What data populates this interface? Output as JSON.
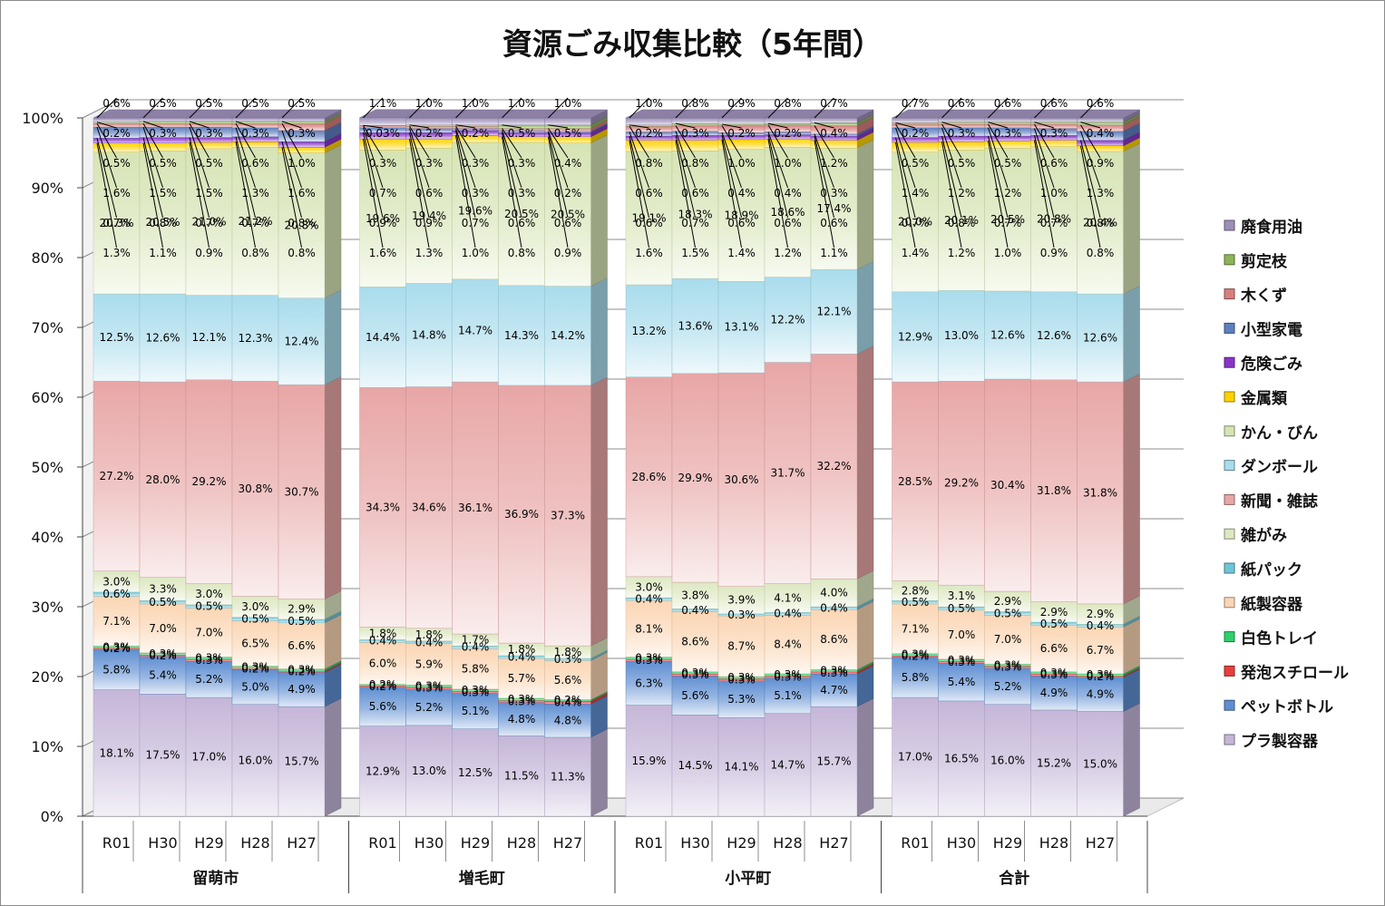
{
  "chart_data": {
    "type": "stacked-bar-3d",
    "title": "資源ごみ収集比較（5年間）",
    "y_ticks": [
      "0%",
      "10%",
      "20%",
      "30%",
      "40%",
      "50%",
      "60%",
      "70%",
      "80%",
      "90%",
      "100%"
    ],
    "ylim": [
      0,
      100
    ],
    "grid": true,
    "legend_position": "right",
    "categories": [
      {
        "group": "留萌市",
        "years": [
          "R01",
          "H30",
          "H29",
          "H28",
          "H27"
        ]
      },
      {
        "group": "増毛町",
        "years": [
          "R01",
          "H30",
          "H29",
          "H28",
          "H27"
        ]
      },
      {
        "group": "小平町",
        "years": [
          "R01",
          "H30",
          "H29",
          "H28",
          "H27"
        ]
      },
      {
        "group": "合計",
        "years": [
          "R01",
          "H30",
          "H29",
          "H28",
          "H27"
        ]
      }
    ],
    "series": [
      {
        "name": "プラ製容器",
        "color": "#c5b6d8",
        "values": [
          [
            18.1,
            17.5,
            17.0,
            16.0,
            15.7
          ],
          [
            12.9,
            13.0,
            12.5,
            11.5,
            11.3
          ],
          [
            15.9,
            14.5,
            14.1,
            14.7,
            15.7
          ],
          [
            17.0,
            16.5,
            16.0,
            15.2,
            15.0
          ]
        ],
        "labels": [
          [
            "18.1%",
            "17.5%",
            "17.0%",
            "16.0%",
            "15.7%"
          ],
          [
            "12.9%",
            "13.0%",
            "12.5%",
            "11.5%",
            "11.3%"
          ],
          [
            "15.9%",
            "14.5%",
            "14.1%",
            "14.7%",
            "15.7%"
          ],
          [
            "17.0%",
            "16.5%",
            "16.0%",
            "15.2%",
            "15.0%"
          ]
        ]
      },
      {
        "name": "ペットボトル",
        "color": "#5f8fd2",
        "values": [
          [
            5.8,
            5.4,
            5.2,
            5.0,
            4.9
          ],
          [
            5.6,
            5.2,
            5.1,
            4.8,
            4.8
          ],
          [
            6.3,
            5.6,
            5.3,
            5.1,
            4.7
          ],
          [
            5.8,
            5.4,
            5.2,
            4.9,
            4.9
          ]
        ],
        "labels": [
          [
            "5.8%",
            "5.4%",
            "5.2%",
            "5.0%",
            "4.9%"
          ],
          [
            "5.6%",
            "5.2%",
            "5.1%",
            "4.8%",
            "4.8%"
          ],
          [
            "6.3%",
            "5.6%",
            "5.3%",
            "5.1%",
            "4.7%"
          ],
          [
            "5.8%",
            "5.4%",
            "5.2%",
            "4.9%",
            "4.9%"
          ]
        ]
      },
      {
        "name": "発泡スチロール",
        "color": "#e63f3f",
        "values": [
          [
            0.2,
            0.2,
            0.3,
            0.2,
            0.2
          ],
          [
            0.2,
            0.3,
            0.3,
            0.3,
            0.4
          ],
          [
            0.3,
            0.3,
            0.3,
            0.3,
            0.3
          ],
          [
            0.2,
            0.3,
            0.3,
            0.3,
            0.2
          ]
        ],
        "labels": [
          [
            "0.2%",
            "0.2%",
            "0.3%",
            "0.2%",
            "0.2%"
          ],
          [
            "0.2%",
            "0.3%",
            "0.3%",
            "0.3%",
            "0.4%"
          ],
          [
            "0.3%",
            "0.3%",
            "0.3%",
            "0.3%",
            "0.3%"
          ],
          [
            "0.2%",
            "0.3%",
            "0.3%",
            "0.3%",
            "0.2%"
          ]
        ]
      },
      {
        "name": "白色トレイ",
        "color": "#2fcf6c",
        "values": [
          [
            0.3,
            0.3,
            0.3,
            0.3,
            0.3
          ],
          [
            0.2,
            0.3,
            0.3,
            0.3,
            0.2
          ],
          [
            0.3,
            0.3,
            0.3,
            0.3,
            0.3
          ],
          [
            0.3,
            0.3,
            0.3,
            0.3,
            0.3
          ]
        ],
        "labels": [
          [
            "0.3%",
            "0.3%",
            "0.3%",
            "0.3%",
            "0.3%"
          ],
          [
            "0.2%",
            "0.3%",
            "0.3%",
            "0.3%",
            "0.2%"
          ],
          [
            "0.3%",
            "0.3%",
            "0.3%",
            "0.3%",
            "0.3%"
          ],
          [
            "0.3%",
            "0.3%",
            "0.3%",
            "0.3%",
            "0.3%"
          ]
        ]
      },
      {
        "name": "紙製容器",
        "color": "#fbd6b4",
        "values": [
          [
            7.1,
            7.0,
            7.0,
            6.5,
            6.6
          ],
          [
            6.0,
            5.9,
            5.8,
            5.7,
            5.6
          ],
          [
            8.1,
            8.6,
            8.7,
            8.4,
            8.6
          ],
          [
            7.1,
            7.0,
            7.0,
            6.6,
            6.7
          ]
        ],
        "labels": [
          [
            "7.1%",
            "7.0%",
            "7.0%",
            "6.5%",
            "6.6%"
          ],
          [
            "6.0%",
            "5.9%",
            "5.8%",
            "5.7%",
            "5.6%"
          ],
          [
            "8.1%",
            "8.6%",
            "8.7%",
            "8.4%",
            "8.6%"
          ],
          [
            "7.1%",
            "7.0%",
            "7.0%",
            "6.6%",
            "6.7%"
          ]
        ]
      },
      {
        "name": "紙パック",
        "color": "#6fc6d9",
        "values": [
          [
            0.6,
            0.5,
            0.5,
            0.5,
            0.5
          ],
          [
            0.4,
            0.4,
            0.4,
            0.4,
            0.3
          ],
          [
            0.4,
            0.4,
            0.3,
            0.4,
            0.4
          ],
          [
            0.5,
            0.5,
            0.5,
            0.5,
            0.4
          ]
        ],
        "labels": [
          [
            "0.6%",
            "0.5%",
            "0.5%",
            "0.5%",
            "0.5%"
          ],
          [
            "0.4%",
            "0.4%",
            "0.4%",
            "0.4%",
            "0.3%"
          ],
          [
            "0.4%",
            "0.4%",
            "0.3%",
            "0.4%",
            "0.4%"
          ],
          [
            "0.5%",
            "0.5%",
            "0.5%",
            "0.5%",
            "0.4%"
          ]
        ]
      },
      {
        "name": "雑がみ",
        "color": "#dde8c2",
        "values": [
          [
            3.0,
            3.3,
            3.0,
            3.0,
            2.9
          ],
          [
            1.8,
            1.8,
            1.7,
            1.8,
            1.8
          ],
          [
            3.0,
            3.8,
            3.9,
            4.1,
            4.0
          ],
          [
            2.8,
            3.1,
            2.9,
            2.9,
            2.9
          ]
        ],
        "labels": [
          [
            "3.0%",
            "3.3%",
            "3.0%",
            "3.0%",
            "2.9%"
          ],
          [
            "1.8%",
            "1.8%",
            "1.7%",
            "1.8%",
            "1.8%"
          ],
          [
            "3.0%",
            "3.8%",
            "3.9%",
            "4.1%",
            "4.0%"
          ],
          [
            "2.8%",
            "3.1%",
            "2.9%",
            "2.9%",
            "2.9%"
          ]
        ]
      },
      {
        "name": "新聞・雑誌",
        "color": "#e8a6a6",
        "values": [
          [
            27.2,
            28.0,
            29.2,
            30.8,
            30.7
          ],
          [
            34.3,
            34.6,
            36.1,
            36.9,
            37.3
          ],
          [
            28.6,
            29.9,
            30.6,
            31.7,
            32.2
          ],
          [
            28.5,
            29.2,
            30.4,
            31.8,
            31.8
          ]
        ],
        "labels": [
          [
            "27.2%",
            "28.0%",
            "29.2%",
            "30.8%",
            "30.7%"
          ],
          [
            "34.3%",
            "34.6%",
            "36.1%",
            "36.9%",
            "37.3%"
          ],
          [
            "28.6%",
            "29.9%",
            "30.6%",
            "31.7%",
            "32.2%"
          ],
          [
            "28.5%",
            "29.2%",
            "30.4%",
            "31.8%",
            "31.8%"
          ]
        ]
      },
      {
        "name": "ダンボール",
        "color": "#a9dcec",
        "values": [
          [
            12.5,
            12.6,
            12.1,
            12.3,
            12.4
          ],
          [
            14.4,
            14.8,
            14.7,
            14.3,
            14.2
          ],
          [
            13.2,
            13.6,
            13.1,
            12.2,
            12.1
          ],
          [
            12.9,
            13.0,
            12.6,
            12.6,
            12.6
          ]
        ],
        "labels": [
          [
            "12.5%",
            "12.6%",
            "12.1%",
            "12.3%",
            "12.4%"
          ],
          [
            "14.4%",
            "14.8%",
            "14.7%",
            "14.3%",
            "14.2%"
          ],
          [
            "13.2%",
            "13.6%",
            "13.1%",
            "12.2%",
            "12.1%"
          ],
          [
            "12.9%",
            "13.0%",
            "12.6%",
            "12.6%",
            "12.6%"
          ]
        ]
      },
      {
        "name": "かん・びん",
        "color": "#d6e4b4",
        "values": [
          [
            20.3,
            20.5,
            21.0,
            21.2,
            20.8
          ],
          [
            19.6,
            19.4,
            19.6,
            20.5,
            20.5
          ],
          [
            19.1,
            18.3,
            18.9,
            18.6,
            17.4
          ],
          [
            20.0,
            20.1,
            20.5,
            20.8,
            20.4
          ]
        ],
        "labels": [
          [
            "20.3%",
            "20.5%",
            "21.0%",
            "21.2%",
            "20.8%"
          ],
          [
            "19.6%",
            "19.4%",
            "19.6%",
            "20.5%",
            "20.5%"
          ],
          [
            "19.1%",
            "18.3%",
            "18.9%",
            "18.6%",
            "17.4%"
          ],
          [
            "20.0%",
            "20.1%",
            "20.5%",
            "20.8%",
            "20.4%"
          ]
        ]
      },
      {
        "name": "金属類",
        "color": "#ffd200",
        "values": [
          [
            1.3,
            1.1,
            0.9,
            0.8,
            0.8
          ],
          [
            1.6,
            1.3,
            1.0,
            0.8,
            0.9
          ],
          [
            1.6,
            1.5,
            1.4,
            1.2,
            1.1
          ],
          [
            1.4,
            1.2,
            1.0,
            0.9,
            0.8
          ]
        ],
        "labels": [
          [
            "1.3%",
            "1.1%",
            "0.9%",
            "0.8%",
            "0.8%"
          ],
          [
            "1.6%",
            "1.3%",
            "1.0%",
            "0.8%",
            "0.9%"
          ],
          [
            "1.6%",
            "1.5%",
            "1.4%",
            "1.2%",
            "1.1%"
          ],
          [
            "1.4%",
            "1.2%",
            "1.0%",
            "0.9%",
            "0.8%"
          ]
        ]
      },
      {
        "name": "危険ごみ",
        "color": "#8a35c8",
        "values": [
          [
            0.7,
            0.8,
            0.7,
            0.7,
            0.8
          ],
          [
            0.9,
            0.9,
            0.7,
            0.6,
            0.6
          ],
          [
            0.6,
            0.7,
            0.6,
            0.6,
            0.6
          ],
          [
            0.7,
            0.8,
            0.7,
            0.7,
            0.8
          ]
        ],
        "labels": [
          [
            "0.7%",
            "0.8%",
            "0.7%",
            "0.7%",
            "0.8%"
          ],
          [
            "0.9%",
            "0.9%",
            "0.7%",
            "0.6%",
            "0.6%"
          ],
          [
            "0.6%",
            "0.7%",
            "0.6%",
            "0.6%",
            "0.6%"
          ],
          [
            "0.7%",
            "0.8%",
            "0.7%",
            "0.7%",
            "0.8%"
          ]
        ]
      },
      {
        "name": "小型家電",
        "color": "#5f7fbe",
        "values": [
          [
            1.6,
            1.5,
            1.5,
            1.3,
            1.6
          ],
          [
            0.7,
            0.6,
            0.3,
            0.3,
            0.2
          ],
          [
            0.6,
            0.6,
            0.4,
            0.4,
            0.3
          ],
          [
            1.4,
            1.2,
            1.2,
            1.0,
            1.3
          ]
        ],
        "labels": [
          [
            "1.6%",
            "1.5%",
            "1.5%",
            "1.3%",
            "1.6%"
          ],
          [
            "0.7%",
            "0.6%",
            "0.3%",
            "0.3%",
            "0.2%"
          ],
          [
            "0.6%",
            "0.6%",
            "0.4%",
            "0.4%",
            "0.3%"
          ],
          [
            "1.4%",
            "1.2%",
            "1.2%",
            "1.0%",
            "1.3%"
          ]
        ]
      },
      {
        "name": "木くず",
        "color": "#d77f7f",
        "values": [
          [
            0.5,
            0.5,
            0.5,
            0.6,
            1.0
          ],
          [
            0.3,
            0.3,
            0.3,
            0.3,
            0.4
          ],
          [
            0.8,
            0.8,
            1.0,
            1.0,
            1.2
          ],
          [
            0.5,
            0.5,
            0.5,
            0.6,
            0.9
          ]
        ],
        "labels": [
          [
            "0.5%",
            "0.5%",
            "0.5%",
            "0.6%",
            "1.0%"
          ],
          [
            "0.3%",
            "0.3%",
            "0.3%",
            "0.3%",
            "0.4%"
          ],
          [
            "0.8%",
            "0.8%",
            "1.0%",
            "1.0%",
            "1.2%"
          ],
          [
            "0.5%",
            "0.5%",
            "0.5%",
            "0.6%",
            "0.9%"
          ]
        ]
      },
      {
        "name": "剪定枝",
        "color": "#8db35a",
        "values": [
          [
            0.2,
            0.3,
            0.3,
            0.3,
            0.3
          ],
          [
            0.03,
            0.2,
            0.2,
            0.5,
            0.5
          ],
          [
            0.2,
            0.3,
            0.2,
            0.2,
            0.4
          ],
          [
            0.2,
            0.3,
            0.3,
            0.3,
            0.4
          ]
        ],
        "labels": [
          [
            "0.2%",
            "0.3%",
            "0.3%",
            "0.3%",
            "0.3%"
          ],
          [
            "0.03%",
            "0.2%",
            "0.2%",
            "0.5%",
            "0.5%"
          ],
          [
            "0.2%",
            "0.3%",
            "0.2%",
            "0.2%",
            "0.4%"
          ],
          [
            "0.2%",
            "0.3%",
            "0.3%",
            "0.3%",
            "0.4%"
          ]
        ]
      },
      {
        "name": "廃食用油",
        "color": "#9c8fb7",
        "values": [
          [
            0.6,
            0.5,
            0.5,
            0.5,
            0.5
          ],
          [
            1.1,
            1.0,
            1.0,
            1.0,
            1.0
          ],
          [
            1.0,
            0.8,
            0.9,
            0.8,
            0.7
          ],
          [
            0.7,
            0.6,
            0.6,
            0.6,
            0.6
          ]
        ],
        "labels": [
          [
            "0.6%",
            "0.5%",
            "0.5%",
            "0.5%",
            "0.5%"
          ],
          [
            "1.1%",
            "1.0%",
            "1.0%",
            "1.0%",
            "1.0%"
          ],
          [
            "1.0%",
            "0.8%",
            "0.9%",
            "0.8%",
            "0.7%"
          ],
          [
            "0.7%",
            "0.6%",
            "0.6%",
            "0.6%",
            "0.6%"
          ]
        ]
      }
    ]
  }
}
